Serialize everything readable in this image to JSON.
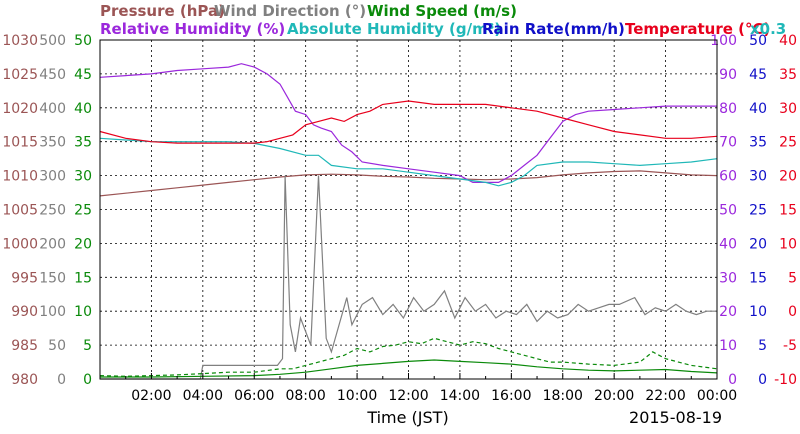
{
  "chart_data": {
    "type": "line",
    "date": "2015-08-19",
    "legend": {
      "row1": [
        {
          "label": "Pressure (hPa)",
          "color": "#9b5555"
        },
        {
          "label": "Wind Direction (°)",
          "color": "#808080"
        },
        {
          "label": "Wind Speed (m/s)",
          "color": "#0a8a0a"
        }
      ],
      "row2": [
        {
          "label": "Relative Humidity (%)",
          "color": "#9b28dc"
        },
        {
          "label": "Absolute Humidity (g/m³)",
          "color": "#20b8b8"
        },
        {
          "label": "Rain Rate(mm/h)",
          "color": "#1010c8"
        },
        {
          "label": "Temperature (°C)",
          "color": "#e8001c"
        },
        {
          "label": "x0.3",
          "color": "#20b8b8"
        }
      ]
    },
    "xlabel": "Time (JST)",
    "x_ticks": [
      "02:00",
      "04:00",
      "06:00",
      "08:00",
      "10:00",
      "12:00",
      "14:00",
      "16:00",
      "18:00",
      "20:00",
      "22:00",
      "00:00"
    ],
    "axes": {
      "pressure": {
        "color": "#9b5555",
        "ticks": [
          "1030",
          "1025",
          "1020",
          "1015",
          "1010",
          "1005",
          "1000",
          "995",
          "990",
          "985",
          "980"
        ],
        "range": [
          980,
          1030
        ]
      },
      "wind_direction": {
        "color": "#808080",
        "ticks": [
          "500",
          "450",
          "400",
          "350",
          "300",
          "250",
          "200",
          "150",
          "100",
          "50",
          "0"
        ],
        "range": [
          0,
          500
        ]
      },
      "wind_speed": {
        "color": "#0a8a0a",
        "ticks": [
          "50",
          "45",
          "40",
          "35",
          "30",
          "25",
          "20",
          "15",
          "10",
          "5",
          "0"
        ],
        "range": [
          0,
          50
        ]
      },
      "humidity": {
        "color": "#9b28dc",
        "ticks": [
          "100",
          "90",
          "80",
          "70",
          "60",
          "50",
          "40",
          "30",
          "20",
          "10",
          "0"
        ],
        "range": [
          0,
          100
        ]
      },
      "rain": {
        "color": "#1010c8",
        "ticks": [
          "50",
          "45",
          "40",
          "35",
          "30",
          "25",
          "20",
          "15",
          "10",
          "5",
          "0"
        ],
        "range": [
          0,
          50
        ]
      },
      "temperature": {
        "color": "#e8001c",
        "ticks": [
          "40",
          "35",
          "30",
          "25",
          "20",
          "15",
          "10",
          "5",
          "0",
          "-5",
          "-10"
        ],
        "range": [
          -10,
          40
        ]
      }
    },
    "grid": true,
    "x_range_hours": [
      0,
      24
    ],
    "series": [
      {
        "name": "Pressure (hPa)",
        "axis": "pressure",
        "color": "#9b5555",
        "style": "solid",
        "x": [
          0,
          1,
          2,
          3,
          4,
          5,
          6,
          7,
          8,
          9,
          10,
          11,
          12,
          13,
          14,
          15,
          16,
          17,
          18,
          19,
          20,
          21,
          22,
          23,
          24
        ],
        "y": [
          1007,
          1007.4,
          1007.8,
          1008.2,
          1008.6,
          1009.0,
          1009.4,
          1009.8,
          1010.1,
          1010.2,
          1010.1,
          1009.9,
          1009.8,
          1009.6,
          1009.5,
          1009.4,
          1009.5,
          1009.7,
          1010.1,
          1010.4,
          1010.6,
          1010.7,
          1010.4,
          1010.1,
          1010.0
        ]
      },
      {
        "name": "Wind Direction (°)",
        "axis": "wind_direction",
        "color": "#808080",
        "style": "solid",
        "x": [
          0,
          3.9,
          4,
          6.9,
          7.1,
          7.2,
          7.4,
          7.6,
          7.8,
          8.2,
          8.5,
          8.8,
          9,
          9.6,
          9.8,
          10.2,
          10.6,
          11,
          11.4,
          11.8,
          12.2,
          12.6,
          13,
          13.4,
          13.8,
          14.2,
          14.6,
          15,
          15.4,
          15.8,
          16.2,
          16.6,
          17,
          17.4,
          17.8,
          18.2,
          18.6,
          19,
          19.4,
          19.8,
          20.2,
          20.8,
          21.2,
          21.6,
          22,
          22.4,
          22.8,
          23.2,
          23.6,
          24
        ],
        "y": [
          0,
          0,
          20,
          20,
          30,
          300,
          80,
          40,
          90,
          50,
          300,
          60,
          40,
          120,
          80,
          110,
          120,
          95,
          110,
          90,
          120,
          100,
          110,
          130,
          90,
          120,
          100,
          110,
          90,
          100,
          95,
          110,
          85,
          100,
          90,
          95,
          110,
          100,
          105,
          110,
          110,
          120,
          95,
          105,
          100,
          110,
          100,
          95,
          100,
          100
        ]
      },
      {
        "name": "Wind Speed (m/s)",
        "axis": "wind_speed",
        "color": "#0a8a0a",
        "style": "dashed",
        "x": [
          0,
          1,
          2,
          3,
          4,
          5,
          6,
          7,
          7.5,
          8,
          8.5,
          9,
          9.5,
          10,
          10.5,
          11,
          11.5,
          12,
          12.5,
          13,
          13.5,
          14,
          14.5,
          15,
          15.5,
          16,
          16.5,
          17,
          17.5,
          18,
          19,
          20,
          21,
          21.5,
          22,
          23,
          24
        ],
        "y": [
          0.5,
          0.4,
          0.5,
          0.6,
          0.8,
          1.0,
          1.0,
          1.5,
          1.5,
          2.0,
          2.5,
          3.0,
          3.5,
          4.5,
          4.0,
          4.8,
          5.0,
          5.5,
          5.2,
          6.0,
          5.5,
          5.0,
          5.5,
          5.2,
          4.5,
          4.0,
          3.5,
          3.0,
          2.5,
          2.5,
          2.2,
          2.0,
          2.5,
          4.0,
          3.0,
          2.0,
          1.5
        ]
      },
      {
        "name": "Wind Speed (avg) (m/s)",
        "axis": "wind_speed",
        "color": "#0a8a0a",
        "style": "solid",
        "x": [
          0,
          2,
          4,
          6,
          7,
          8,
          9,
          10,
          11,
          12,
          13,
          14,
          15,
          16,
          17,
          18,
          19,
          20,
          21,
          22,
          23,
          24
        ],
        "y": [
          0.3,
          0.3,
          0.4,
          0.5,
          0.7,
          1.0,
          1.5,
          2.0,
          2.3,
          2.6,
          2.8,
          2.6,
          2.4,
          2.2,
          1.8,
          1.5,
          1.3,
          1.2,
          1.3,
          1.4,
          1.1,
          0.9
        ]
      },
      {
        "name": "Relative Humidity (%)",
        "axis": "humidity",
        "color": "#9b28dc",
        "style": "solid",
        "x": [
          0,
          1,
          2,
          3,
          4,
          5,
          5.5,
          6,
          6.5,
          7,
          7.3,
          7.6,
          8,
          8.3,
          8.6,
          9,
          9.4,
          9.8,
          10.2,
          11,
          12,
          13,
          14,
          14.5,
          15,
          15.5,
          16,
          16.5,
          17,
          17.5,
          18,
          18.5,
          19,
          20,
          21,
          22,
          23,
          24
        ],
        "y": [
          89,
          89.5,
          90,
          91,
          91.5,
          92,
          93,
          92,
          90,
          87,
          83,
          79,
          78,
          75,
          74,
          73,
          69,
          67,
          64,
          63,
          62,
          61,
          60,
          58,
          58,
          58,
          60,
          63,
          66,
          71,
          76,
          78,
          79,
          79.5,
          80,
          80.5,
          80.5,
          80.5
        ]
      },
      {
        "name": "Absolute Humidity (g/m³)",
        "axis": "humidity",
        "color": "#20b8b8",
        "style": "solid",
        "scale_note": "x0.3",
        "x": [
          0,
          1,
          2,
          3,
          4,
          5,
          6,
          7,
          8,
          8.5,
          9,
          10,
          11,
          12,
          13,
          14,
          15,
          15.5,
          16,
          16.5,
          17,
          18,
          19,
          20,
          21,
          22,
          23,
          24
        ],
        "y": [
          71,
          70.5,
          70,
          70,
          70,
          70,
          69.5,
          68,
          66,
          66,
          63,
          62,
          62,
          61,
          60,
          59,
          58,
          57,
          58,
          60,
          63,
          64,
          64,
          63.5,
          63,
          63.5,
          64,
          65
        ]
      },
      {
        "name": "Temperature (°C)",
        "axis": "temperature",
        "color": "#e8001c",
        "style": "solid",
        "x": [
          0,
          1,
          2,
          3,
          4,
          5,
          6,
          6.5,
          7,
          7.5,
          8,
          8.5,
          9,
          9.5,
          10,
          10.5,
          11,
          12,
          13,
          14,
          15,
          16,
          17,
          18,
          19,
          20,
          21,
          22,
          23,
          24
        ],
        "y": [
          26.5,
          25.5,
          25,
          24.8,
          24.8,
          24.8,
          24.8,
          25,
          25.5,
          26,
          27.5,
          28,
          28.5,
          28,
          29,
          29.5,
          30.5,
          31,
          30.5,
          30.5,
          30.5,
          30,
          29.5,
          28.5,
          27.5,
          26.5,
          26,
          25.5,
          25.5,
          25.8
        ]
      }
    ]
  }
}
